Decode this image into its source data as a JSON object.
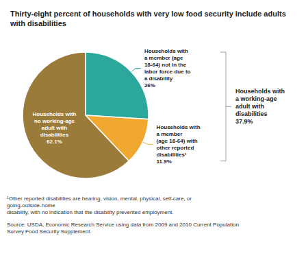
{
  "chart_data": {
    "type": "pie",
    "title": "Thirty-eight percent of households with very low food security include adults\nwith disabilities",
    "values": [
      26.0,
      11.9,
      62.1
    ],
    "value_labels": [
      "Households with\na member (age\n18-64) not in the\nlabor force due to\na disability\n26%",
      "Households with\na member\n(age 18-64) with\nother reported\ndisabilities¹\n11.9%",
      "Households with\nno working-age\nadult with\ndisabilities\n62.1%"
    ],
    "colors": [
      "#2BA89B",
      "#F0A830",
      "#9B7B3A"
    ],
    "data_labels": true,
    "annotation": "Households with\na working-age\nadult with\ndisabilities\n37.9%",
    "footnote": "¹Other reported disabilities are hearing, vision, mental, physical, self-care, or going-outside-home\ndisability, with no indication that the disability prevented employment.",
    "source": "Source: USDA, Economic Research Service using data from 2009 and 2010 Current Population\nSurvey Food Security Supplement."
  }
}
